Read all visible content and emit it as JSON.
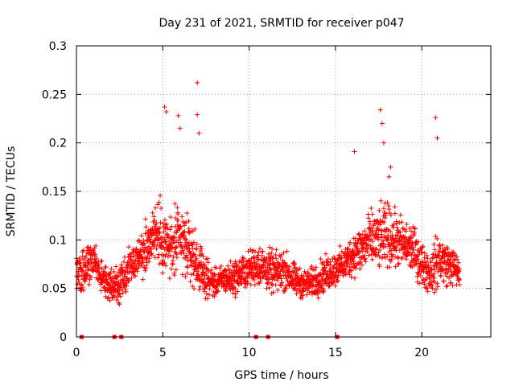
{
  "chart_data": {
    "type": "scatter",
    "title": "Day 231 of 2021, SRMTID for receiver p047",
    "xlabel": "GPS time / hours",
    "ylabel": "SRMTID / TECUs",
    "xlim": [
      0,
      24
    ],
    "ylim": [
      0,
      0.3
    ],
    "x_ticks": [
      0,
      5,
      10,
      15,
      20
    ],
    "x_tick_labels": [
      "0",
      "5",
      "10",
      "15",
      "20"
    ],
    "y_ticks": [
      0,
      0.05,
      0.1,
      0.15,
      0.2,
      0.25,
      0.3
    ],
    "y_tick_labels": [
      "0",
      "0.05",
      "0.1",
      "0.15",
      "0.2",
      "0.25",
      "0.3"
    ],
    "grid": true,
    "marker": "plus",
    "color": "#ff0000",
    "zero_markers_x": [
      0.3,
      2.2,
      2.6,
      10.4,
      11.1,
      15.1
    ],
    "profile": {
      "x": [
        0.0,
        0.5,
        1.0,
        1.5,
        2.0,
        2.5,
        3.0,
        3.5,
        4.0,
        4.5,
        5.0,
        5.5,
        6.0,
        6.5,
        7.0,
        7.5,
        8.0,
        8.5,
        9.0,
        9.5,
        10.0,
        10.5,
        11.0,
        11.5,
        12.0,
        12.5,
        13.0,
        13.5,
        14.0,
        14.5,
        15.0,
        15.5,
        16.0,
        16.5,
        17.0,
        17.5,
        18.0,
        18.5,
        19.0,
        19.5,
        20.0,
        20.5,
        21.0,
        21.5,
        22.0,
        22.2
      ],
      "mean": [
        0.065,
        0.07,
        0.08,
        0.06,
        0.05,
        0.055,
        0.07,
        0.08,
        0.09,
        0.11,
        0.1,
        0.09,
        0.1,
        0.09,
        0.075,
        0.06,
        0.055,
        0.06,
        0.06,
        0.065,
        0.07,
        0.075,
        0.07,
        0.065,
        0.07,
        0.06,
        0.055,
        0.055,
        0.06,
        0.065,
        0.07,
        0.075,
        0.085,
        0.09,
        0.1,
        0.1,
        0.105,
        0.1,
        0.095,
        0.09,
        0.075,
        0.065,
        0.08,
        0.075,
        0.07,
        0.065
      ],
      "spread": [
        0.025,
        0.03,
        0.03,
        0.025,
        0.025,
        0.025,
        0.03,
        0.03,
        0.035,
        0.04,
        0.05,
        0.045,
        0.055,
        0.04,
        0.04,
        0.025,
        0.02,
        0.02,
        0.025,
        0.025,
        0.025,
        0.03,
        0.03,
        0.03,
        0.03,
        0.025,
        0.02,
        0.02,
        0.025,
        0.025,
        0.025,
        0.025,
        0.03,
        0.035,
        0.04,
        0.045,
        0.045,
        0.04,
        0.035,
        0.035,
        0.03,
        0.03,
        0.04,
        0.03,
        0.025,
        0.025
      ]
    },
    "peaks": [
      {
        "x": 5.1,
        "y": 0.237
      },
      {
        "x": 5.2,
        "y": 0.232
      },
      {
        "x": 5.9,
        "y": 0.228
      },
      {
        "x": 6.0,
        "y": 0.215
      },
      {
        "x": 7.0,
        "y": 0.262
      },
      {
        "x": 7.0,
        "y": 0.229
      },
      {
        "x": 7.1,
        "y": 0.21
      },
      {
        "x": 17.6,
        "y": 0.234
      },
      {
        "x": 17.7,
        "y": 0.22
      },
      {
        "x": 17.8,
        "y": 0.2
      },
      {
        "x": 16.1,
        "y": 0.191
      },
      {
        "x": 20.8,
        "y": 0.226
      },
      {
        "x": 20.9,
        "y": 0.205
      },
      {
        "x": 18.2,
        "y": 0.175
      },
      {
        "x": 18.1,
        "y": 0.165
      }
    ]
  }
}
